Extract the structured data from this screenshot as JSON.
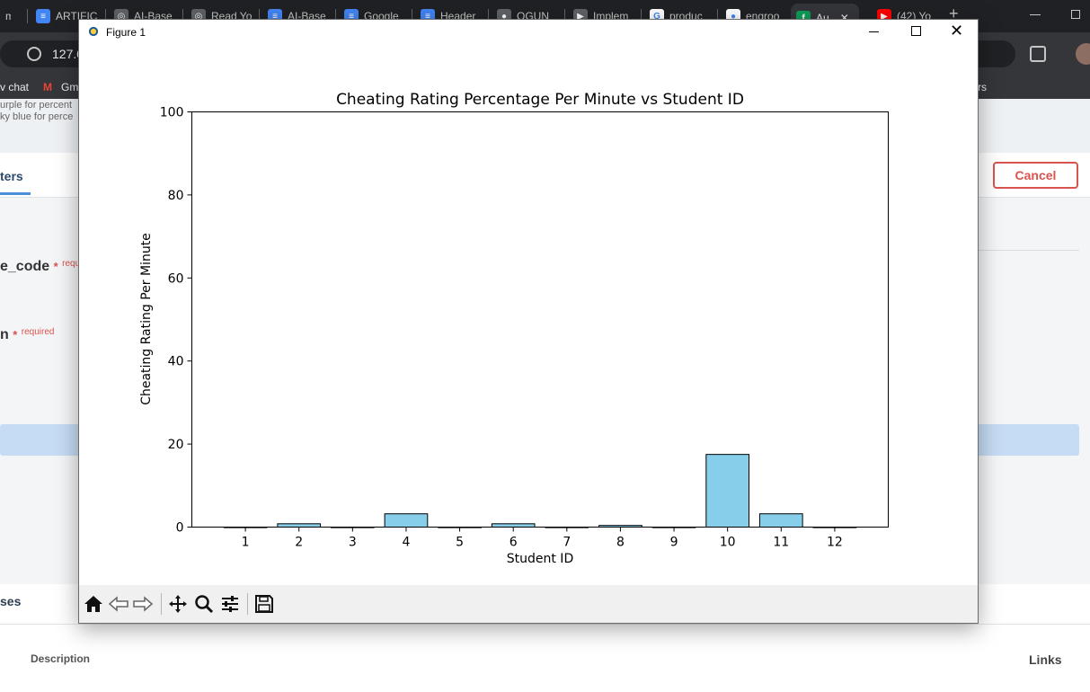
{
  "browser": {
    "tabs": [
      {
        "label": "m",
        "color": "#8ab4f8",
        "glyph": ""
      },
      {
        "label": "ARTIFIC",
        "color": "#4285f4",
        "glyph": "≡"
      },
      {
        "label": "AI-Base",
        "color": "#5f6368",
        "glyph": "◎"
      },
      {
        "label": "Read Yo",
        "color": "#5f6368",
        "glyph": "◎"
      },
      {
        "label": "AI-Base",
        "color": "#4285f4",
        "glyph": "≡"
      },
      {
        "label": "Google",
        "color": "#4285f4",
        "glyph": "≡"
      },
      {
        "label": "Header",
        "color": "#4285f4",
        "glyph": "≡"
      },
      {
        "label": "OGUN",
        "color": "#5f6368",
        "glyph": "●"
      },
      {
        "label": "Implem",
        "color": "#5f6368",
        "glyph": "▶"
      },
      {
        "label": "produc",
        "color": "#ffffff",
        "glyph": "G"
      },
      {
        "label": "engroo",
        "color": "#ffffff",
        "glyph": "●"
      },
      {
        "label": "Au",
        "color": "#0f9d58",
        "glyph": "f"
      },
      {
        "label": "(42) Yo",
        "color": "#ff0000",
        "glyph": "▶"
      }
    ],
    "url": "127.0",
    "bookmarks": [
      {
        "label": "v chat"
      },
      {
        "label": "Gm"
      },
      {
        "label": "rs"
      }
    ],
    "new_tab_icon": "plus-icon",
    "star_icon": "star-icon",
    "extensions_icon": "puzzle-icon"
  },
  "page": {
    "desc_line1": "urple for percent",
    "desc_line2": "ky blue for perce",
    "tab_label": "ters",
    "cancel_label": "Cancel",
    "field1_label": "e_code",
    "field1_req_mark": "*",
    "field1_req": "requi",
    "field2_label": "n",
    "field2_req_mark": "*",
    "field2_req": "required",
    "section_label": "ses",
    "col_description": "Description",
    "col_links": "Links"
  },
  "figure": {
    "window_title": "Figure 1",
    "toolbar": [
      {
        "name": "home-icon"
      },
      {
        "name": "back-icon"
      },
      {
        "name": "forward-icon"
      },
      {
        "name": "pan-icon"
      },
      {
        "name": "zoom-icon"
      },
      {
        "name": "configure-subplots-icon"
      },
      {
        "name": "save-icon"
      }
    ]
  },
  "chart_data": {
    "type": "bar",
    "title": "Cheating Rating Percentage Per Minute vs Student ID",
    "xlabel": "Student ID",
    "ylabel": "Cheating Rating Per Minute",
    "categories": [
      "1",
      "2",
      "3",
      "4",
      "5",
      "6",
      "7",
      "8",
      "9",
      "10",
      "11",
      "12"
    ],
    "values": [
      0,
      0.8,
      0,
      3.2,
      0,
      0.8,
      0,
      0.4,
      0,
      17.5,
      3.2,
      0
    ],
    "ylim": [
      0,
      100
    ],
    "yticks": [
      0,
      20,
      40,
      60,
      80,
      100
    ],
    "bar_color": "#87ceeb",
    "edge_color": "#000000",
    "grid": false
  }
}
